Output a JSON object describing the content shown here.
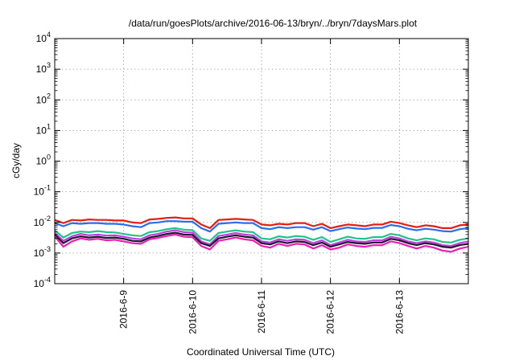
{
  "chart_data": {
    "type": "line",
    "title": "/data/run/goesPlots/archive/2016-06-13/bryn/../bryn/7daysMars.plot",
    "xlabel": "Coordinated Universal Time (UTC)",
    "ylabel": "cGy/day",
    "y_scale": "log",
    "ylim": [
      0.0001,
      10000
    ],
    "y_ticks": [
      {
        "value": 0.0001,
        "base": "10",
        "exp": "-4"
      },
      {
        "value": 0.001,
        "base": "10",
        "exp": "-3"
      },
      {
        "value": 0.01,
        "base": "10",
        "exp": "-2"
      },
      {
        "value": 0.1,
        "base": "10",
        "exp": "-1"
      },
      {
        "value": 1,
        "base": "10",
        "exp": "0"
      },
      {
        "value": 10,
        "base": "10",
        "exp": "1"
      },
      {
        "value": 100,
        "base": "10",
        "exp": "2"
      },
      {
        "value": 1000,
        "base": "10",
        "exp": "3"
      },
      {
        "value": 10000,
        "base": "10",
        "exp": "4"
      }
    ],
    "xlim": [
      "2016-06-08 00:00",
      "2016-06-14 00:00"
    ],
    "x_ticks": [
      {
        "value": "2016-06-09 00:00",
        "label": "2016-6-9"
      },
      {
        "value": "2016-06-10 00:00",
        "label": "2016-6-10"
      },
      {
        "value": "2016-06-11 00:00",
        "label": "2016-6-11"
      },
      {
        "value": "2016-06-12 00:00",
        "label": "2016-6-12"
      },
      {
        "value": "2016-06-13 00:00",
        "label": "2016-6-13"
      }
    ],
    "grid": true,
    "legend": "none",
    "x": [
      "2016-06-08 00:00",
      "2016-06-08 03:00",
      "2016-06-08 06:00",
      "2016-06-08 09:00",
      "2016-06-08 12:00",
      "2016-06-08 15:00",
      "2016-06-08 18:00",
      "2016-06-08 21:00",
      "2016-06-09 00:00",
      "2016-06-09 03:00",
      "2016-06-09 06:00",
      "2016-06-09 09:00",
      "2016-06-09 12:00",
      "2016-06-09 15:00",
      "2016-06-09 18:00",
      "2016-06-09 21:00",
      "2016-06-10 00:00",
      "2016-06-10 03:00",
      "2016-06-10 06:00",
      "2016-06-10 09:00",
      "2016-06-10 12:00",
      "2016-06-10 15:00",
      "2016-06-10 18:00",
      "2016-06-10 21:00",
      "2016-06-11 00:00",
      "2016-06-11 03:00",
      "2016-06-11 06:00",
      "2016-06-11 09:00",
      "2016-06-11 12:00",
      "2016-06-11 15:00",
      "2016-06-11 18:00",
      "2016-06-11 21:00",
      "2016-06-12 00:00",
      "2016-06-12 03:00",
      "2016-06-12 06:00",
      "2016-06-12 09:00",
      "2016-06-12 12:00",
      "2016-06-12 15:00",
      "2016-06-12 18:00",
      "2016-06-12 21:00",
      "2016-06-13 00:00",
      "2016-06-13 03:00",
      "2016-06-13 06:00",
      "2016-06-13 09:00",
      "2016-06-13 12:00",
      "2016-06-13 15:00",
      "2016-06-13 18:00",
      "2016-06-13 21:00",
      "2016-06-14 00:00"
    ],
    "series": [
      {
        "color": "#e51e10",
        "values": [
          0.012,
          0.0095,
          0.012,
          0.0115,
          0.0125,
          0.012,
          0.012,
          0.0115,
          0.0115,
          0.01,
          0.0095,
          0.0125,
          0.013,
          0.014,
          0.0145,
          0.0135,
          0.0135,
          0.0085,
          0.0065,
          0.012,
          0.0125,
          0.013,
          0.0125,
          0.012,
          0.0085,
          0.008,
          0.009,
          0.0085,
          0.0095,
          0.0095,
          0.0075,
          0.009,
          0.0065,
          0.0075,
          0.0085,
          0.008,
          0.0075,
          0.0085,
          0.0085,
          0.0105,
          0.0095,
          0.008,
          0.007,
          0.008,
          0.0075,
          0.0065,
          0.0065,
          0.008,
          0.0085
        ]
      },
      {
        "color": "#2a6ef0",
        "values": [
          0.0095,
          0.0075,
          0.0095,
          0.009,
          0.0095,
          0.0095,
          0.009,
          0.009,
          0.0085,
          0.0075,
          0.007,
          0.0095,
          0.01,
          0.011,
          0.011,
          0.0105,
          0.0105,
          0.0065,
          0.005,
          0.009,
          0.0095,
          0.01,
          0.0095,
          0.0095,
          0.0065,
          0.006,
          0.007,
          0.0065,
          0.007,
          0.007,
          0.0058,
          0.007,
          0.0052,
          0.006,
          0.0068,
          0.0063,
          0.006,
          0.0066,
          0.0066,
          0.0082,
          0.0075,
          0.0062,
          0.0055,
          0.0062,
          0.0058,
          0.0052,
          0.005,
          0.006,
          0.0065
        ]
      },
      {
        "color": "#1fc48a",
        "values": [
          0.0055,
          0.0032,
          0.0045,
          0.005,
          0.0048,
          0.0052,
          0.0048,
          0.0047,
          0.0042,
          0.0038,
          0.0036,
          0.0048,
          0.0052,
          0.006,
          0.0065,
          0.0058,
          0.0056,
          0.003,
          0.0025,
          0.0045,
          0.005,
          0.0055,
          0.005,
          0.0048,
          0.003,
          0.0028,
          0.0035,
          0.0032,
          0.0036,
          0.0034,
          0.0027,
          0.0033,
          0.0023,
          0.0028,
          0.0034,
          0.003,
          0.0029,
          0.0033,
          0.0033,
          0.0042,
          0.0038,
          0.003,
          0.0026,
          0.003,
          0.0028,
          0.0023,
          0.0022,
          0.0027,
          0.003
        ]
      },
      {
        "color": "#c23cdf",
        "values": [
          0.0045,
          0.0025,
          0.0035,
          0.0042,
          0.0038,
          0.004,
          0.0037,
          0.0038,
          0.0034,
          0.003,
          0.0028,
          0.0038,
          0.0042,
          0.005,
          0.0055,
          0.0048,
          0.0046,
          0.0024,
          0.0019,
          0.0036,
          0.004,
          0.0045,
          0.004,
          0.0038,
          0.0024,
          0.0022,
          0.0028,
          0.0025,
          0.0028,
          0.0027,
          0.0021,
          0.0026,
          0.0018,
          0.0022,
          0.0027,
          0.0024,
          0.0023,
          0.0026,
          0.0026,
          0.0034,
          0.003,
          0.0024,
          0.0021,
          0.0024,
          0.0022,
          0.0018,
          0.0017,
          0.0021,
          0.0024
        ]
      },
      {
        "color": "#1a1a2e",
        "values": [
          0.004,
          0.0021,
          0.003,
          0.0035,
          0.0032,
          0.0034,
          0.0031,
          0.0032,
          0.0029,
          0.0025,
          0.0024,
          0.0032,
          0.0036,
          0.0042,
          0.0046,
          0.004,
          0.0039,
          0.0021,
          0.0017,
          0.003,
          0.0034,
          0.0038,
          0.0034,
          0.0032,
          0.0021,
          0.0019,
          0.0024,
          0.0021,
          0.0024,
          0.0023,
          0.0018,
          0.0022,
          0.0016,
          0.0019,
          0.0023,
          0.0021,
          0.002,
          0.0022,
          0.0022,
          0.0029,
          0.0026,
          0.0021,
          0.0018,
          0.0021,
          0.0019,
          0.0016,
          0.0015,
          0.0018,
          0.002
        ]
      },
      {
        "color": "#f01eb4",
        "values": [
          0.0035,
          0.0016,
          0.0024,
          0.003,
          0.0027,
          0.0029,
          0.0026,
          0.0027,
          0.0024,
          0.0021,
          0.002,
          0.0028,
          0.0031,
          0.0036,
          0.004,
          0.0034,
          0.0033,
          0.0017,
          0.0013,
          0.0025,
          0.0028,
          0.0032,
          0.0028,
          0.0026,
          0.0017,
          0.0015,
          0.002,
          0.0017,
          0.002,
          0.0019,
          0.0014,
          0.0018,
          0.0013,
          0.0015,
          0.0019,
          0.0017,
          0.0016,
          0.0018,
          0.0018,
          0.0024,
          0.0021,
          0.0017,
          0.0014,
          0.0017,
          0.0015,
          0.0012,
          0.0011,
          0.0014,
          0.0016
        ]
      }
    ]
  }
}
